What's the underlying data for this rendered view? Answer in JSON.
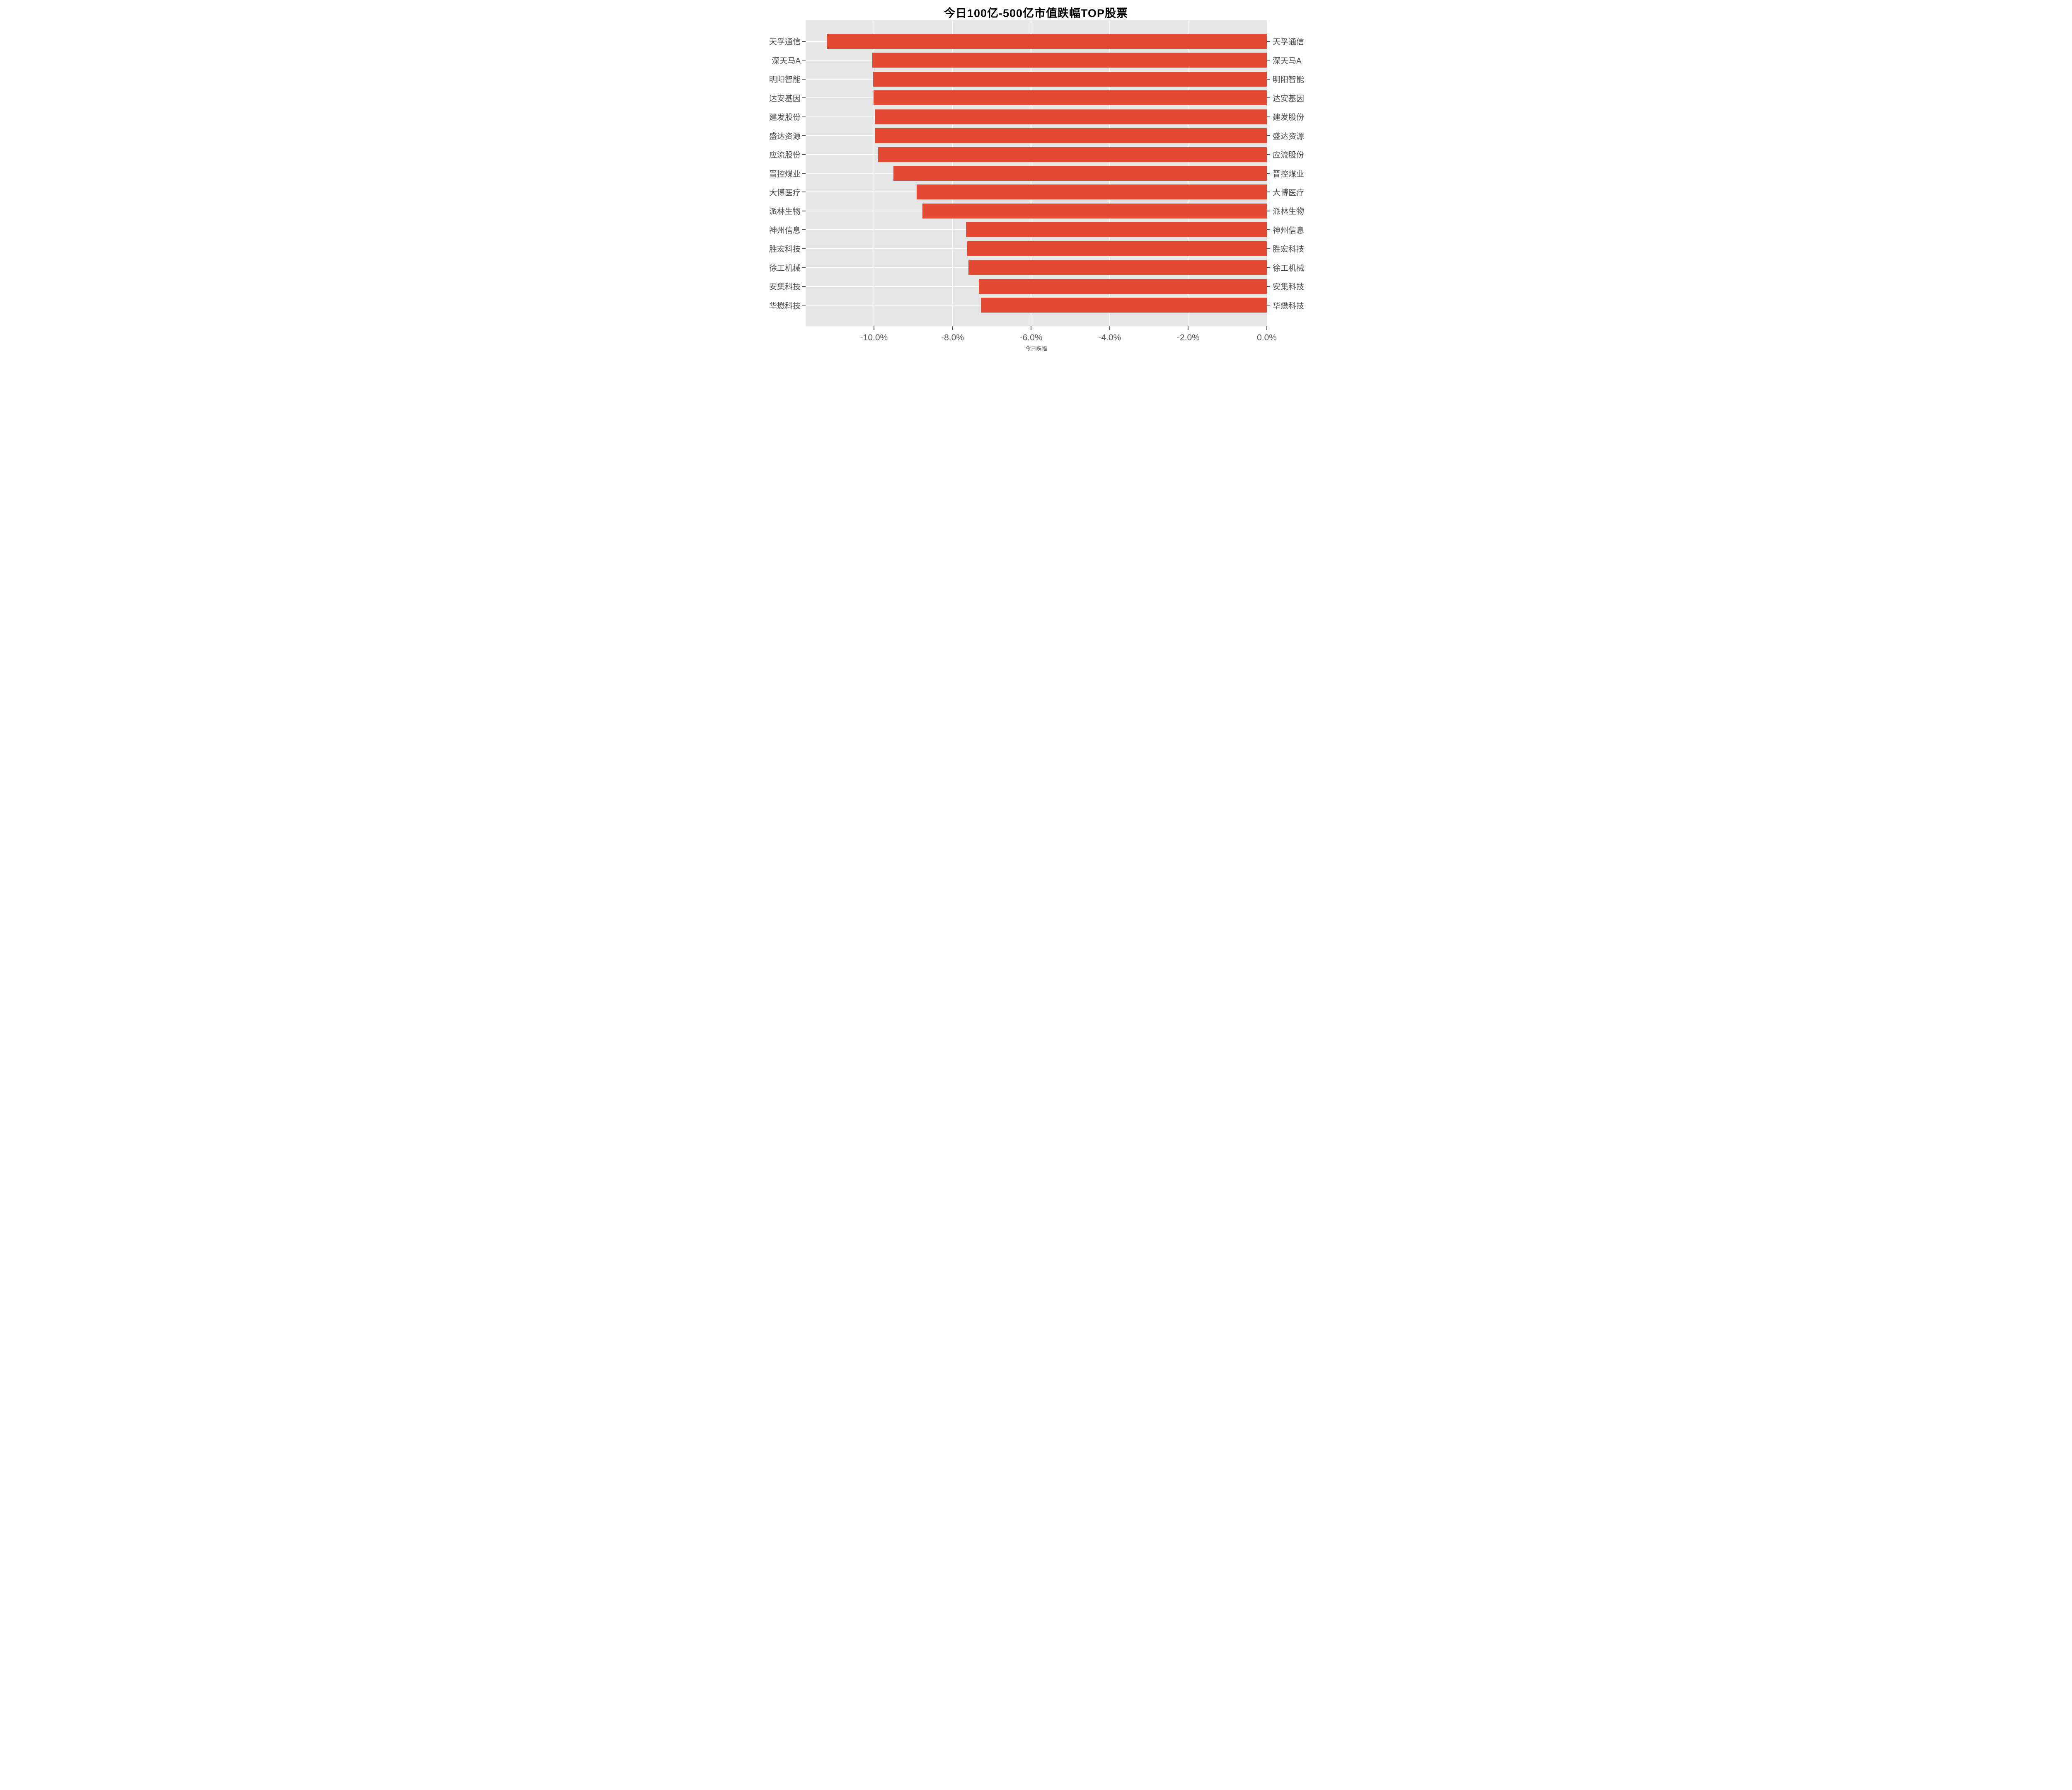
{
  "title": "今日100亿-500亿市值跌幅TOP股票",
  "xlabel": "今日跌幅",
  "chart_data": {
    "type": "bar",
    "orientation": "horizontal",
    "title": "今日100亿-500亿市值跌幅TOP股票",
    "xlabel": "今日跌幅",
    "ylabel": "",
    "categories": [
      "天孚通信",
      "深天马A",
      "明阳智能",
      "达安基因",
      "建发股份",
      "盛达资源",
      "应流股份",
      "晋控煤业",
      "大博医疗",
      "派林生物",
      "神州信息",
      "胜宏科技",
      "徐工机械",
      "安集科技",
      "华懋科技"
    ],
    "values": [
      -11.2,
      -10.04,
      -10.02,
      -10.01,
      -9.98,
      -9.97,
      -9.89,
      -9.5,
      -8.91,
      -8.77,
      -7.66,
      -7.63,
      -7.6,
      -7.33,
      -7.28
    ],
    "value_unit": "%",
    "xlim": [
      -11.74,
      0
    ],
    "x_ticks": [
      -10,
      -8,
      -6,
      -4,
      -2,
      0
    ],
    "x_tick_labels": [
      "-10.0%",
      "-8.0%",
      "-6.0%",
      "-4.0%",
      "-2.0%",
      "0.0%"
    ],
    "grid": true,
    "legend": false,
    "mirrored_category_labels": true,
    "colors": {
      "bar": "#e24a33",
      "plot_background": "#e5e5e5",
      "page_background": "#ffffff",
      "gridline": "#ffffff",
      "tick_text": "#555555",
      "category_text": "#4d4d4d",
      "title_text": "#000000"
    }
  }
}
